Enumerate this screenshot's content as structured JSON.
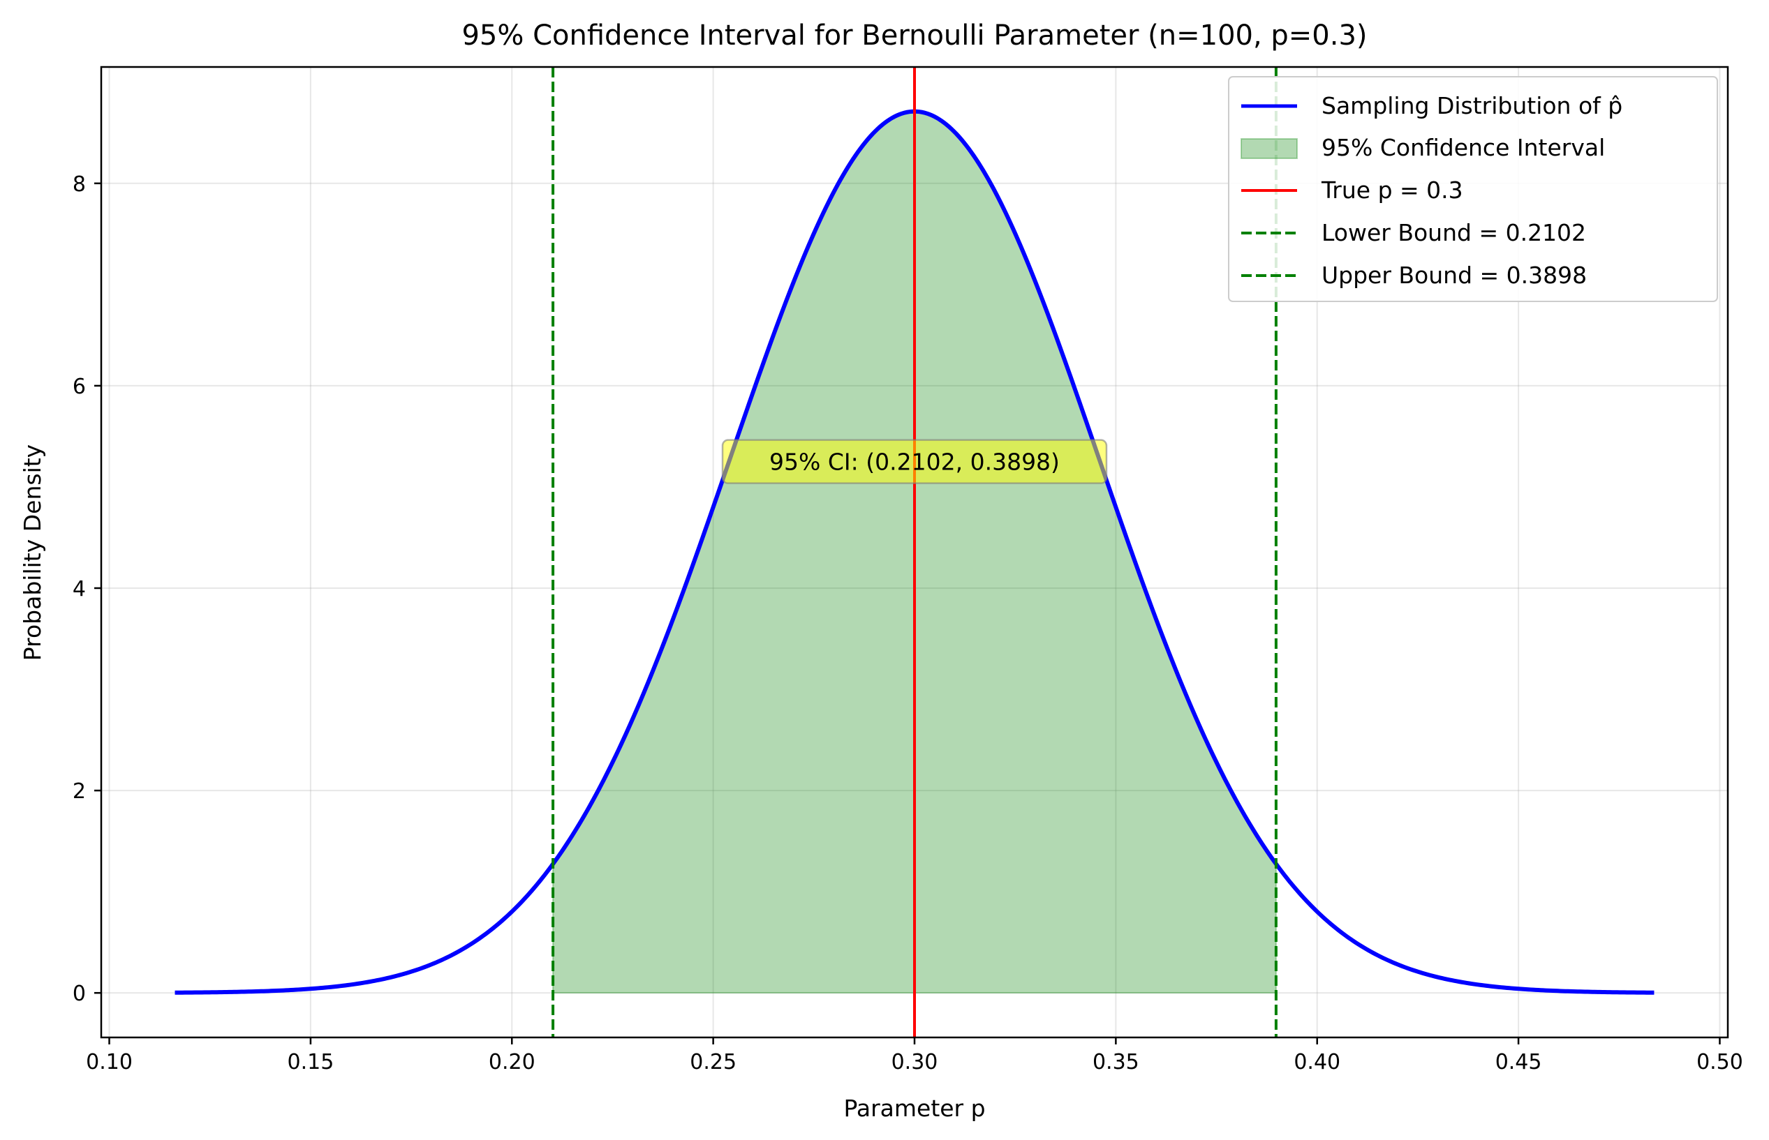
{
  "chart_data": {
    "type": "line",
    "title": "95% Confidence Interval for Bernoulli Parameter (n=100, p=0.3)",
    "xlabel": "Parameter p",
    "ylabel": "Probability Density",
    "xlim": [
      0.098,
      0.502
    ],
    "ylim": [
      -0.44,
      9.15
    ],
    "x_ticks": [
      0.1,
      0.15,
      0.2,
      0.25,
      0.3,
      0.35,
      0.4,
      0.45,
      0.5
    ],
    "x_tick_labels": [
      "0.10",
      "0.15",
      "0.20",
      "0.25",
      "0.30",
      "0.35",
      "0.40",
      "0.45",
      "0.50"
    ],
    "y_ticks": [
      0,
      2,
      4,
      6,
      8
    ],
    "y_tick_labels": [
      "0",
      "2",
      "4",
      "6",
      "8"
    ],
    "grid": true,
    "legend_position": "top-right",
    "distribution": {
      "name": "Sampling Distribution of p̂",
      "mean": 0.3,
      "sd": 0.0458,
      "x_range": [
        0.1163,
        0.4837
      ],
      "color": "#0000ff"
    },
    "interval": {
      "name": "95% Confidence Interval",
      "lower": 0.2102,
      "upper": 0.3898,
      "color": "#008000"
    },
    "true_p": {
      "name": "True p = 0.3",
      "value": 0.3,
      "color": "#ff0000"
    },
    "lower_bound": {
      "name": "Lower Bound = 0.2102",
      "value": 0.2102,
      "color": "#008000"
    },
    "upper_bound": {
      "name": "Upper Bound = 0.3898",
      "value": 0.3898,
      "color": "#008000"
    },
    "annotation": {
      "text": "95% CI: (0.2102, 0.3898)",
      "x": 0.3,
      "y": 5.25
    }
  }
}
